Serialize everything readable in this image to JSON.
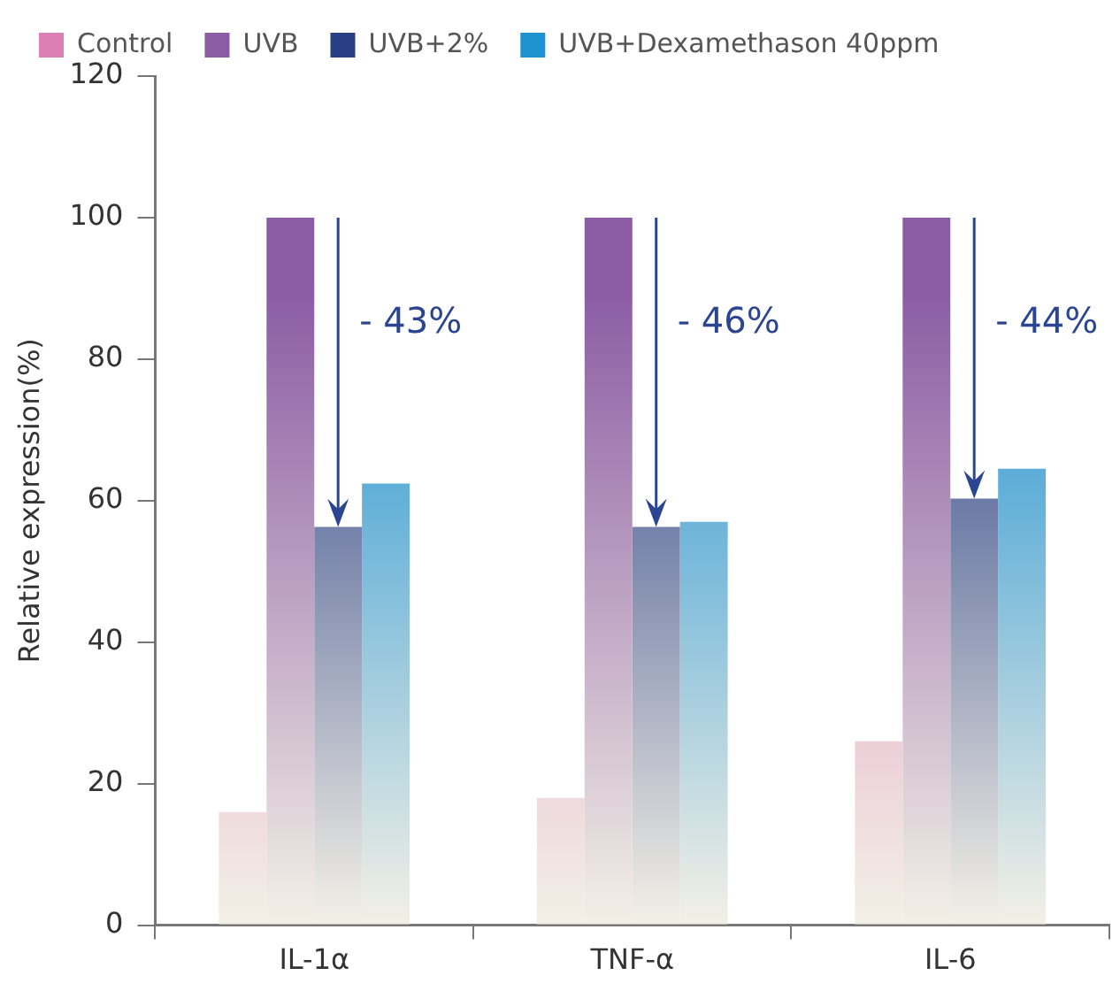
{
  "chart_data": {
    "type": "bar",
    "ylabel": "Relative expression(%)",
    "categories": [
      "IL-1α",
      "TNF-α",
      "IL-6"
    ],
    "series": [
      {
        "name": "Control",
        "color": "#dc7fb5",
        "values": [
          16,
          18,
          26
        ]
      },
      {
        "name": "UVB",
        "color": "#8b5ba3",
        "values": [
          100,
          100,
          100
        ]
      },
      {
        "name": "UVB+2%",
        "color": "#283f85",
        "values": [
          56.3,
          56.3,
          60.3
        ]
      },
      {
        "name": "UVB+Dexamethason 40ppm",
        "color": "#1f92d2",
        "values": [
          62.4,
          57,
          64.5
        ]
      }
    ],
    "ylim": [
      0,
      120
    ],
    "yticks": [
      0,
      20,
      40,
      60,
      80,
      100,
      120
    ],
    "grid": false,
    "legend": "top",
    "annotations": [
      {
        "text": "- 43%",
        "x": "IL-1α",
        "y": 85
      },
      {
        "text": "- 46%",
        "x": "TNF-α",
        "y": 85
      },
      {
        "text": "- 44%",
        "x": "IL-6",
        "y": 85
      }
    ]
  }
}
